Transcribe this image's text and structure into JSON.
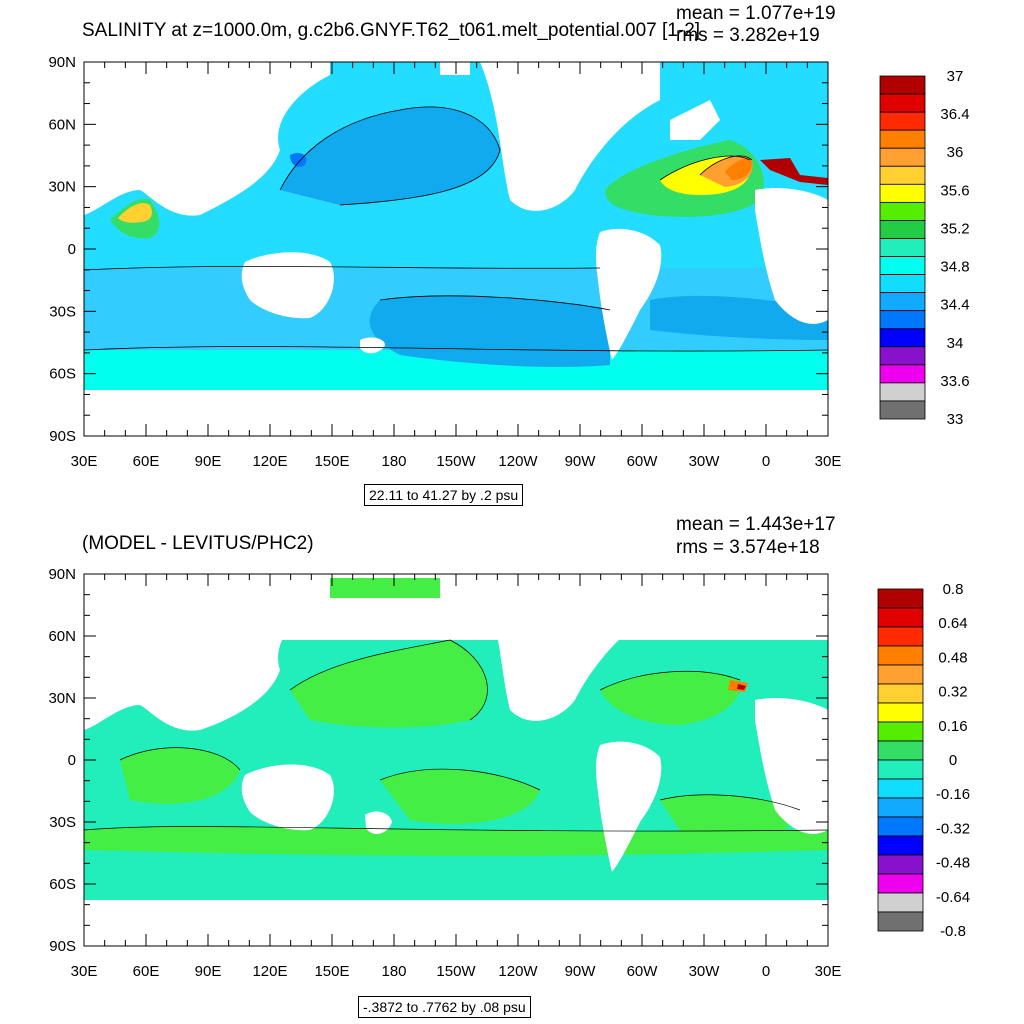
{
  "panels": [
    {
      "title": "SALINITY at z=1000.0m, g.c2b6.GNYF.T62_t061.melt_potential.007 [1-2]",
      "mean_text": "mean = 1.077e+19",
      "rms_text": "rms = 3.282e+19",
      "range_text": "22.11 to 41.27 by .2 psu",
      "lat_labels": [
        "90N",
        "60N",
        "30N",
        "0",
        "30S",
        "60S",
        "90S"
      ],
      "lon_labels": [
        "30E",
        "60E",
        "90E",
        "120E",
        "150E",
        "180",
        "150W",
        "120W",
        "90W",
        "60W",
        "30W",
        "0",
        "30E"
      ],
      "colorbar_labels": [
        "37",
        "36.4",
        "36",
        "35.6",
        "35.2",
        "34.8",
        "34.4",
        "34",
        "33.6",
        "33"
      ],
      "colorbar_colors": [
        "#b00000",
        "#e00000",
        "#ff2a00",
        "#ff7f00",
        "#ffa030",
        "#ffd030",
        "#ffff00",
        "#55ee00",
        "#22cc44",
        "#22eebb",
        "#00ffee",
        "#11ddff",
        "#11aaff",
        "#0077ff",
        "#0000ff",
        "#8811cc",
        "#ee00ee",
        "#d0d0d0",
        "#707070"
      ]
    },
    {
      "title": "(MODEL - LEVITUS/PHC2)",
      "mean_text": "mean = 1.443e+17",
      "rms_text": "rms = 3.574e+18",
      "range_text": "-.3872 to .7762 by .08 psu",
      "lat_labels": [
        "90N",
        "60N",
        "30N",
        "0",
        "30S",
        "60S",
        "90S"
      ],
      "lon_labels": [
        "30E",
        "60E",
        "90E",
        "120E",
        "150E",
        "180",
        "150W",
        "120W",
        "90W",
        "60W",
        "30W",
        "0",
        "30E"
      ],
      "colorbar_labels": [
        "0.8",
        "0.64",
        "0.48",
        "0.32",
        "0.16",
        "0",
        "-0.16",
        "-0.32",
        "-0.48",
        "-0.64",
        "-0.8"
      ],
      "colorbar_colors": [
        "#b00000",
        "#e00000",
        "#ff2a00",
        "#ff7f00",
        "#ffa030",
        "#ffd030",
        "#ffff00",
        "#55ee00",
        "#33dd66",
        "#22eebb",
        "#11ddff",
        "#11aaff",
        "#0077ff",
        "#0000ff",
        "#8811cc",
        "#ee00ee",
        "#d0d0d0",
        "#707070"
      ]
    }
  ],
  "colors": {
    "land": "#ffffff",
    "ocean_mid_top": "#22ddff",
    "ocean_deep_top": "#11aaee",
    "ocean_south_top": "#00ffee",
    "ocean_bottom": "#22eebb",
    "anomaly_green": "#44ee44"
  }
}
